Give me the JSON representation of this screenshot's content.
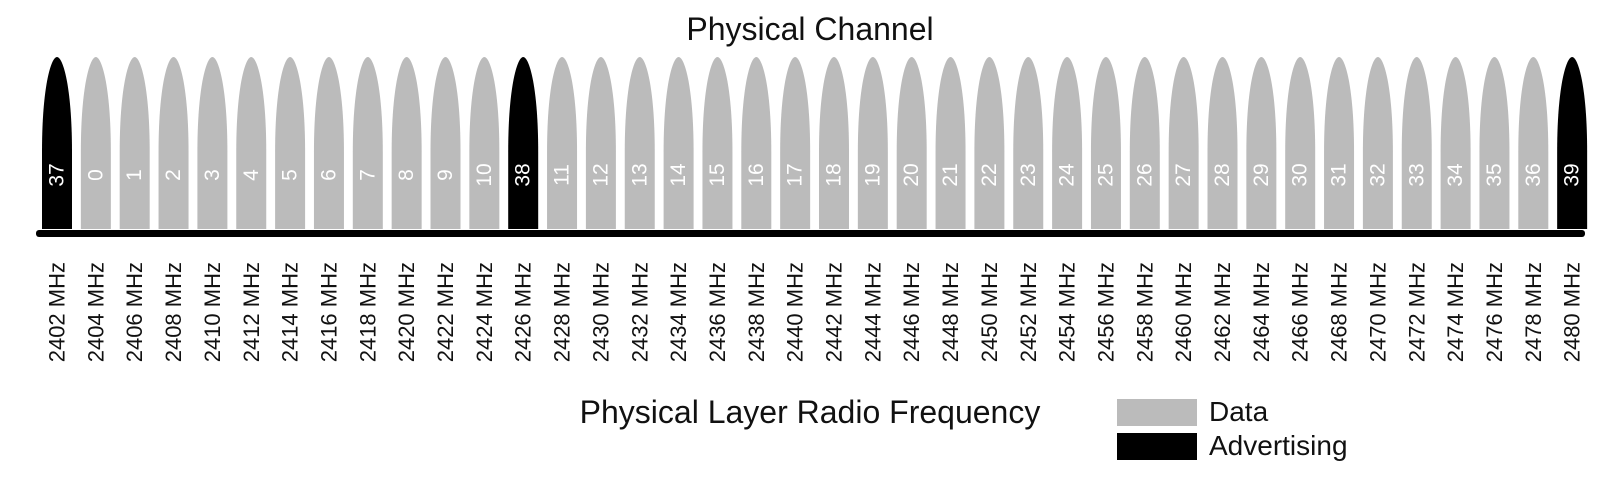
{
  "title": "Physical Channel",
  "axis_title": "Physical Layer Radio Frequency",
  "colors": {
    "data": "#bbbbbb",
    "advertising": "#000000",
    "baseline": "#000000"
  },
  "legend": [
    {
      "label": "Data",
      "type": "data"
    },
    {
      "label": "Advertising",
      "type": "advertising"
    }
  ],
  "channels": [
    {
      "number": "37",
      "frequency": "2402 MHz",
      "type": "advertising"
    },
    {
      "number": "0",
      "frequency": "2404 MHz",
      "type": "data"
    },
    {
      "number": "1",
      "frequency": "2406 MHz",
      "type": "data"
    },
    {
      "number": "2",
      "frequency": "2408 MHz",
      "type": "data"
    },
    {
      "number": "3",
      "frequency": "2410 MHz",
      "type": "data"
    },
    {
      "number": "4",
      "frequency": "2412 MHz",
      "type": "data"
    },
    {
      "number": "5",
      "frequency": "2414 MHz",
      "type": "data"
    },
    {
      "number": "6",
      "frequency": "2416 MHz",
      "type": "data"
    },
    {
      "number": "7",
      "frequency": "2418 MHz",
      "type": "data"
    },
    {
      "number": "8",
      "frequency": "2420 MHz",
      "type": "data"
    },
    {
      "number": "9",
      "frequency": "2422 MHz",
      "type": "data"
    },
    {
      "number": "10",
      "frequency": "2424 MHz",
      "type": "data"
    },
    {
      "number": "38",
      "frequency": "2426 MHz",
      "type": "advertising"
    },
    {
      "number": "11",
      "frequency": "2428 MHz",
      "type": "data"
    },
    {
      "number": "12",
      "frequency": "2430 MHz",
      "type": "data"
    },
    {
      "number": "13",
      "frequency": "2432 MHz",
      "type": "data"
    },
    {
      "number": "14",
      "frequency": "2434 MHz",
      "type": "data"
    },
    {
      "number": "15",
      "frequency": "2436 MHz",
      "type": "data"
    },
    {
      "number": "16",
      "frequency": "2438 MHz",
      "type": "data"
    },
    {
      "number": "17",
      "frequency": "2440 MHz",
      "type": "data"
    },
    {
      "number": "18",
      "frequency": "2442 MHz",
      "type": "data"
    },
    {
      "number": "19",
      "frequency": "2444 MHz",
      "type": "data"
    },
    {
      "number": "20",
      "frequency": "2446 MHz",
      "type": "data"
    },
    {
      "number": "21",
      "frequency": "2448 MHz",
      "type": "data"
    },
    {
      "number": "22",
      "frequency": "2450 MHz",
      "type": "data"
    },
    {
      "number": "23",
      "frequency": "2452 MHz",
      "type": "data"
    },
    {
      "number": "24",
      "frequency": "2454 MHz",
      "type": "data"
    },
    {
      "number": "25",
      "frequency": "2456 MHz",
      "type": "data"
    },
    {
      "number": "26",
      "frequency": "2458 MHz",
      "type": "data"
    },
    {
      "number": "27",
      "frequency": "2460 MHz",
      "type": "data"
    },
    {
      "number": "28",
      "frequency": "2462 MHz",
      "type": "data"
    },
    {
      "number": "29",
      "frequency": "2464 MHz",
      "type": "data"
    },
    {
      "number": "30",
      "frequency": "2466 MHz",
      "type": "data"
    },
    {
      "number": "31",
      "frequency": "2468 MHz",
      "type": "data"
    },
    {
      "number": "32",
      "frequency": "2470 MHz",
      "type": "data"
    },
    {
      "number": "33",
      "frequency": "2472 MHz",
      "type": "data"
    },
    {
      "number": "34",
      "frequency": "2474 MHz",
      "type": "data"
    },
    {
      "number": "35",
      "frequency": "2476 MHz",
      "type": "data"
    },
    {
      "number": "36",
      "frequency": "2478 MHz",
      "type": "data"
    },
    {
      "number": "39",
      "frequency": "2480 MHz",
      "type": "advertising"
    }
  ]
}
